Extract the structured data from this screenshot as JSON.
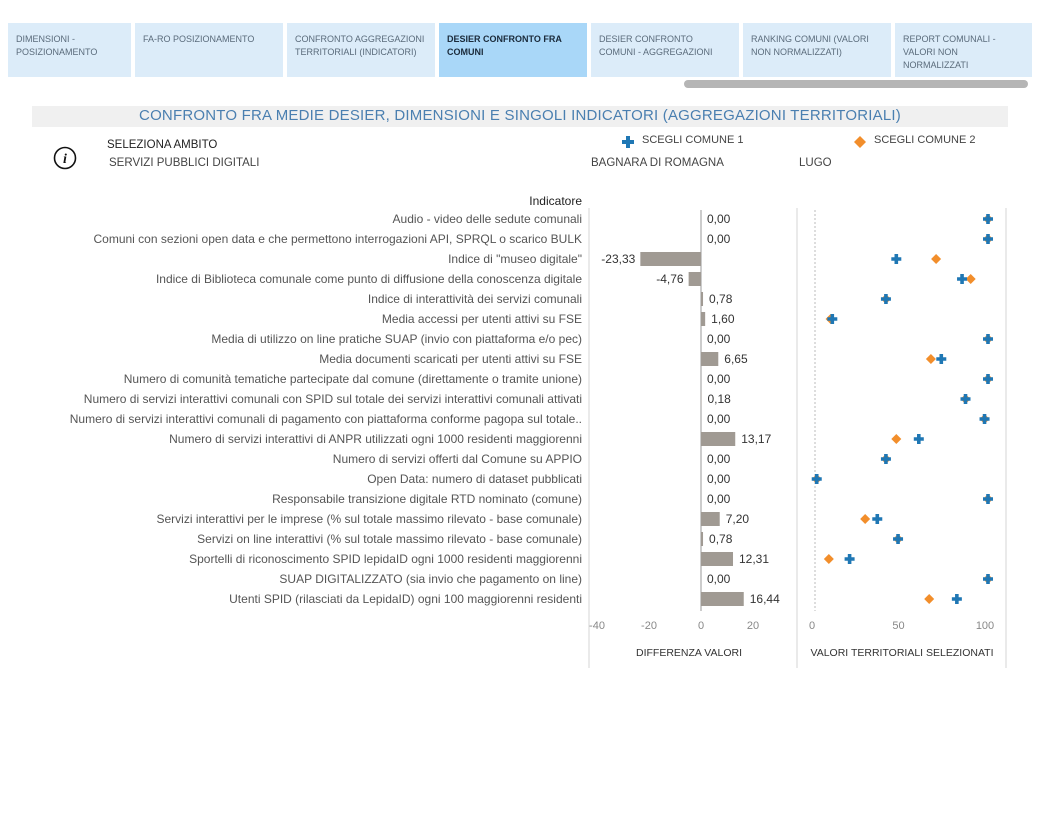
{
  "tabs": [
    {
      "label": "Dimensioni - Posizionamento"
    },
    {
      "label": "FA-RO Posizionamento"
    },
    {
      "label": "Confronto aggregazioni territoriali (indicatori)"
    },
    {
      "label": "DESIER confronto fra comuni"
    },
    {
      "label": "DESIER confronto comuni - aggregazioni"
    },
    {
      "label": "Ranking comuni (valori non normalizzati)"
    },
    {
      "label": "Report comunali - valori non normalizzati"
    }
  ],
  "active_tab": 3,
  "header": {
    "title": "CONFRONTO FRA MEDIE DESIER, DIMENSIONI E SINGOLI INDICATORI (AGGREGAZIONI TERRITORIALI)",
    "ambito_label": "SELEZIONA AMBITO",
    "ambito_value": "SERVIZI PUBBLICI DIGITALI",
    "legend1": "SCEGLI COMUNE 1",
    "legend2": "SCEGLI COMUNE 2",
    "comune1": "BAGNARA DI ROMAGNA",
    "comune2": "LUGO"
  },
  "colors": {
    "comune1": "#1f77b4",
    "comune2": "#f28e2b",
    "bar": "#a09a93"
  },
  "chart_data": {
    "type": "bar",
    "indicator_header": "Indicatore",
    "categories": [
      "Audio - video delle sedute comunali",
      "Comuni con sezioni open data e che permettono interrogazioni API, SPRQL o scarico BULK",
      "Indice di \"museo digitale\"",
      "Indice di Biblioteca comunale come punto di diffusione della conoscenza digitale",
      "Indice di interattività dei servizi comunali",
      "Media accessi per utenti attivi su FSE",
      "Media di utilizzo on line pratiche SUAP (invio con piattaforma e/o pec)",
      "Media documenti scaricati per utenti attivi su FSE",
      "Numero di comunità tematiche partecipate dal comune (direttamente o tramite unione)",
      "Numero di servizi interattivi comunali con SPID sul totale dei servizi interattivi comunali attivati",
      "Numero di servizi interattivi comunali di pagamento con piattaforma conforme pagopa sul totale..",
      "Numero di servizi interattivi di ANPR utilizzati ogni 1000 residenti maggiorenni",
      "Numero di servizi offerti dal Comune su APPIO",
      "Open Data: numero di dataset pubblicati",
      "Responsabile transizione digitale RTD nominato (comune)",
      "Servizi interattivi per le imprese (% sul totale massimo rilevato - base comunale)",
      "Servizi on line interattivi (% sul totale massimo rilevato - base comunale)",
      "Sportelli di riconoscimento SPID lepidaID ogni 1000 residenti maggiorenni",
      "SUAP DIGITALIZZATO (sia invio che pagamento on line)",
      "Utenti SPID (rilasciati da LepidaID) ogni 100 maggiorenni residenti"
    ],
    "differenza": {
      "xlabel": "DIFFERENZA VALORI",
      "values": [
        0.0,
        0.0,
        -23.33,
        -4.76,
        0.78,
        1.6,
        0.0,
        6.65,
        0.0,
        0.18,
        0.0,
        13.17,
        0.0,
        0.0,
        0.0,
        7.2,
        0.78,
        12.31,
        0.0,
        16.44
      ],
      "labels": [
        "0,00",
        "0,00",
        "-23,33",
        "-4,76",
        "0,78",
        "1,60",
        "0,00",
        "6,65",
        "0,00",
        "0,18",
        "0,00",
        "13,17",
        "0,00",
        "0,00",
        "0,00",
        "7,20",
        "0,78",
        "12,31",
        "0,00",
        "16,44"
      ],
      "xlim": [
        -40,
        30
      ],
      "ticks": [
        "-40",
        "-20",
        "0",
        "20"
      ],
      "tick_values": [
        -40,
        -20,
        0,
        20
      ]
    },
    "valori": {
      "xlabel": "VALORI TERRITORIALI SELEZIONATI",
      "xlim": [
        0,
        110
      ],
      "ticks": [
        "0",
        "50",
        "100"
      ],
      "tick_values": [
        0,
        50,
        100
      ],
      "series": [
        {
          "name": "SCEGLI COMUNE 1",
          "values": [
            100,
            100,
            47,
            85,
            41,
            10,
            100,
            73,
            100,
            87,
            98,
            60,
            41,
            1,
            100,
            36,
            48,
            20,
            100,
            82
          ]
        },
        {
          "name": "SCEGLI COMUNE 2",
          "values": [
            100,
            100,
            70,
            90,
            41,
            9,
            100,
            67,
            100,
            87,
            98,
            47,
            41,
            1,
            100,
            29,
            48,
            8,
            100,
            66
          ]
        }
      ]
    }
  }
}
